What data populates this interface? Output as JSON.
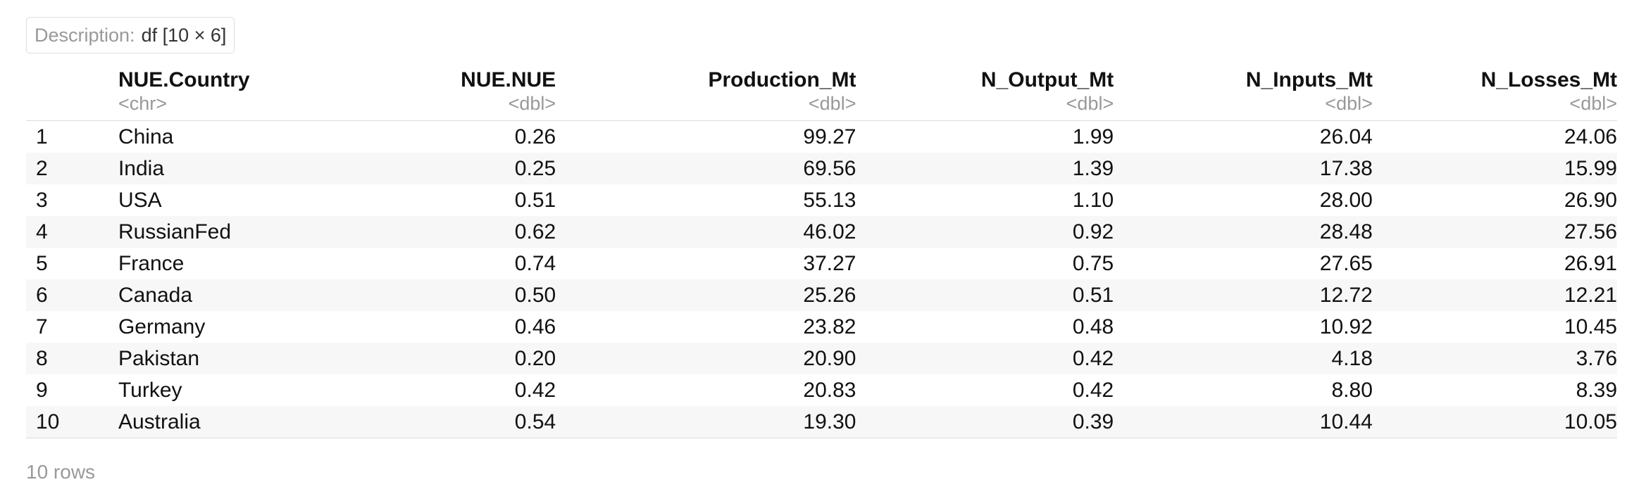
{
  "description": {
    "label": "Description:",
    "value": "df [10 × 6]"
  },
  "columns": [
    {
      "name": "NUE.Country",
      "type": "<chr>"
    },
    {
      "name": "NUE.NUE",
      "type": "<dbl>"
    },
    {
      "name": "Production_Mt",
      "type": "<dbl>"
    },
    {
      "name": "N_Output_Mt",
      "type": "<dbl>"
    },
    {
      "name": "N_Inputs_Mt",
      "type": "<dbl>"
    },
    {
      "name": "N_Losses_Mt",
      "type": "<dbl>"
    }
  ],
  "rows": [
    {
      "idx": "1",
      "country": "China",
      "nue": "0.26",
      "production": "99.27",
      "output": "1.99",
      "inputs": "26.04",
      "losses": "24.06"
    },
    {
      "idx": "2",
      "country": "India",
      "nue": "0.25",
      "production": "69.56",
      "output": "1.39",
      "inputs": "17.38",
      "losses": "15.99"
    },
    {
      "idx": "3",
      "country": "USA",
      "nue": "0.51",
      "production": "55.13",
      "output": "1.10",
      "inputs": "28.00",
      "losses": "26.90"
    },
    {
      "idx": "4",
      "country": "RussianFed",
      "nue": "0.62",
      "production": "46.02",
      "output": "0.92",
      "inputs": "28.48",
      "losses": "27.56"
    },
    {
      "idx": "5",
      "country": "France",
      "nue": "0.74",
      "production": "37.27",
      "output": "0.75",
      "inputs": "27.65",
      "losses": "26.91"
    },
    {
      "idx": "6",
      "country": "Canada",
      "nue": "0.50",
      "production": "25.26",
      "output": "0.51",
      "inputs": "12.72",
      "losses": "12.21"
    },
    {
      "idx": "7",
      "country": "Germany",
      "nue": "0.46",
      "production": "23.82",
      "output": "0.48",
      "inputs": "10.92",
      "losses": "10.45"
    },
    {
      "idx": "8",
      "country": "Pakistan",
      "nue": "0.20",
      "production": "20.90",
      "output": "0.42",
      "inputs": "4.18",
      "losses": "3.76"
    },
    {
      "idx": "9",
      "country": "Turkey",
      "nue": "0.42",
      "production": "20.83",
      "output": "0.42",
      "inputs": "8.80",
      "losses": "8.39"
    },
    {
      "idx": "10",
      "country": "Australia",
      "nue": "0.54",
      "production": "19.30",
      "output": "0.39",
      "inputs": "10.44",
      "losses": "10.05"
    }
  ],
  "footer": {
    "row_count": "10 rows"
  }
}
